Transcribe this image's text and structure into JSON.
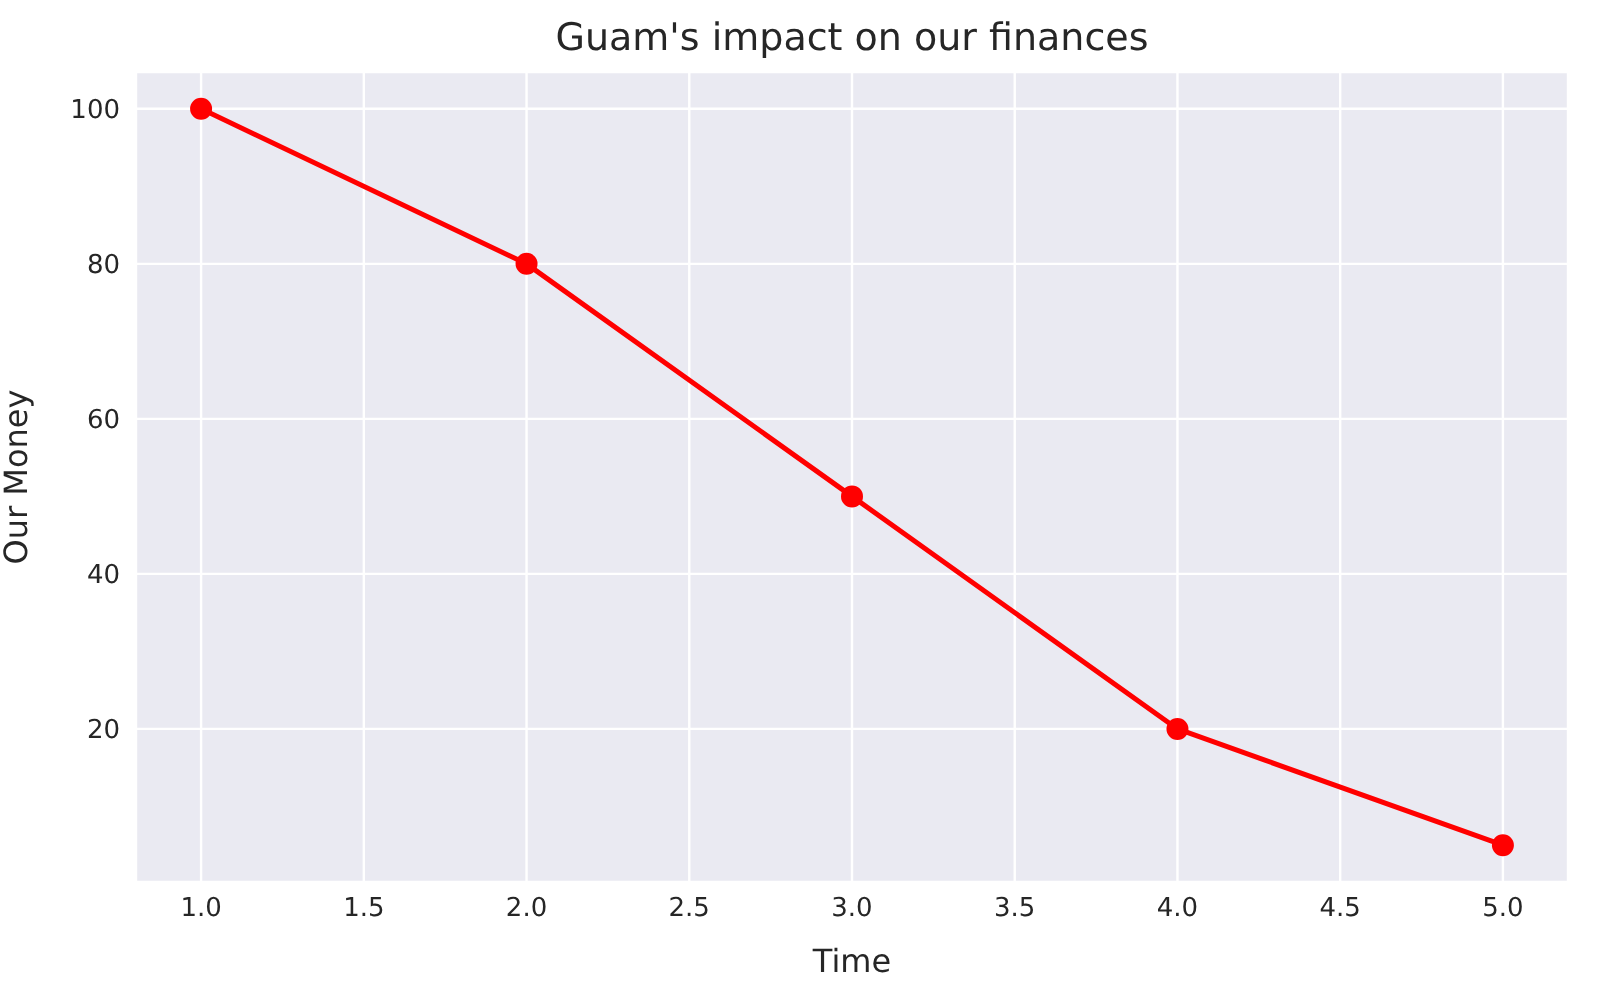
{
  "chart_data": {
    "type": "line",
    "title": "Guam's impact on our finances",
    "xlabel": "Time",
    "ylabel": "Our Money",
    "x": [
      1,
      2,
      3,
      4,
      5
    ],
    "series": [
      {
        "color": "#ff0000",
        "values": [
          100,
          80,
          50,
          20,
          5
        ]
      }
    ],
    "xlim": [
      0.8,
      5.2
    ],
    "xticks": [
      {
        "value": 1,
        "label": "1.0"
      },
      {
        "value": 1.5,
        "label": "1.5"
      },
      {
        "value": 2,
        "label": "2.0"
      },
      {
        "value": 2.5,
        "label": "2.5"
      },
      {
        "value": 3,
        "label": "3.0"
      },
      {
        "value": 3.5,
        "label": "3.5"
      },
      {
        "value": 4,
        "label": "4.0"
      },
      {
        "value": 4.5,
        "label": "4.5"
      },
      {
        "value": 5,
        "label": "5.0"
      }
    ],
    "ylim": [
      0.25,
      104.75
    ],
    "yticks": [
      20,
      40,
      60,
      80,
      100
    ],
    "grid": true,
    "marker": "circle",
    "line_style": "solid",
    "legend": false
  }
}
